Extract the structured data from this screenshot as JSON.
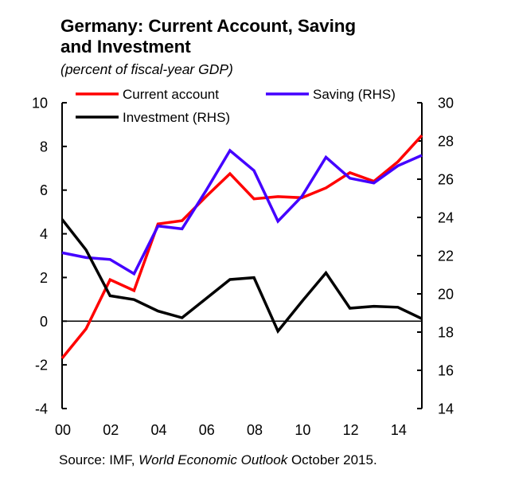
{
  "chart_data": {
    "type": "line",
    "title_line1": "Germany: Current Account, Saving",
    "title_line2": "and Investment",
    "subtitle": "(percent of  fiscal-year GDP)",
    "x": [
      2000,
      2001,
      2002,
      2003,
      2004,
      2005,
      2006,
      2007,
      2008,
      2009,
      2010,
      2011,
      2012,
      2013,
      2014,
      2015
    ],
    "x_tick_labels": [
      "00",
      "02",
      "04",
      "06",
      "08",
      "10",
      "12",
      "14"
    ],
    "x_tick_years": [
      2000,
      2002,
      2004,
      2006,
      2008,
      2010,
      2012,
      2014
    ],
    "y_left": {
      "lim": [
        -4,
        10
      ],
      "ticks": [
        -4,
        -2,
        0,
        2,
        4,
        6,
        8,
        10
      ],
      "tick_labels": [
        "-4",
        "-2",
        "0",
        "2",
        "4",
        "6",
        "8",
        "10"
      ]
    },
    "y_right": {
      "lim": [
        14,
        30
      ],
      "ticks": [
        14,
        16,
        18,
        20,
        22,
        24,
        26,
        28,
        30
      ],
      "tick_labels": [
        "14",
        "16",
        "18",
        "20",
        "22",
        "24",
        "26",
        "28",
        "30"
      ]
    },
    "zero_line": 0,
    "grid": false,
    "legend_placement": "top",
    "series": [
      {
        "name": "Current account",
        "axis": "left",
        "color": "#ff0000",
        "values": [
          -1.7,
          -0.35,
          1.9,
          1.4,
          4.45,
          4.6,
          5.7,
          6.75,
          5.6,
          5.7,
          5.65,
          6.1,
          6.8,
          6.4,
          7.3,
          8.5
        ]
      },
      {
        "name": "Saving (RHS)",
        "axis": "right",
        "color": "#4400ff",
        "values": [
          22.15,
          21.9,
          21.8,
          21.05,
          23.55,
          23.4,
          25.4,
          27.5,
          26.45,
          23.8,
          25.1,
          27.15,
          26.05,
          25.8,
          26.7,
          27.25
        ]
      },
      {
        "name": "Investment (RHS)",
        "axis": "right",
        "color": "#000000",
        "values": [
          23.9,
          22.3,
          19.9,
          19.7,
          19.1,
          18.75,
          19.75,
          20.75,
          20.85,
          18.05,
          19.6,
          21.1,
          19.25,
          19.35,
          19.3,
          18.7
        ]
      }
    ],
    "source_prefix": "Source: IMF, ",
    "source_italic": "World Economic Outlook",
    "source_suffix": " October 2015."
  }
}
